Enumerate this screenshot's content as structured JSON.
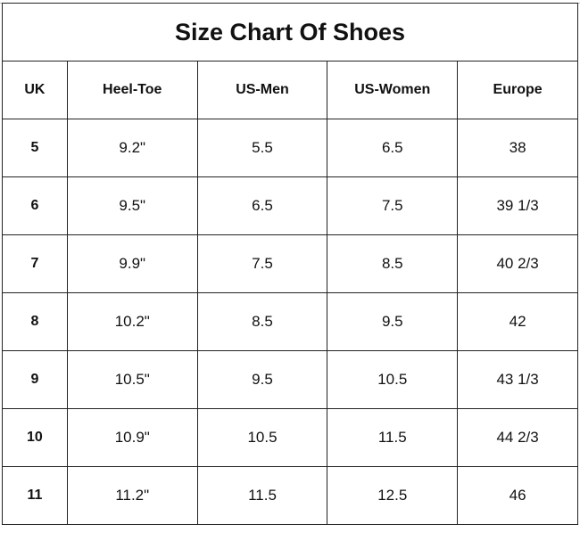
{
  "title": "Size Chart Of Shoes",
  "columns": [
    "UK",
    "Heel-Toe",
    "US-Men",
    "US-Women",
    "Europe"
  ],
  "rows": [
    [
      "5",
      "9.2\"",
      "5.5",
      "6.5",
      "38"
    ],
    [
      "6",
      "9.5\"",
      "6.5",
      "7.5",
      "39 1/3"
    ],
    [
      "7",
      "9.9\"",
      "7.5",
      "8.5",
      "40 2/3"
    ],
    [
      "8",
      "10.2\"",
      "8.5",
      "9.5",
      "42"
    ],
    [
      "9",
      "10.5\"",
      "9.5",
      "10.5",
      "43 1/3"
    ],
    [
      "10",
      "10.9\"",
      "10.5",
      "11.5",
      "44 2/3"
    ],
    [
      "11",
      "11.2\"",
      "11.5",
      "12.5",
      "46"
    ]
  ]
}
